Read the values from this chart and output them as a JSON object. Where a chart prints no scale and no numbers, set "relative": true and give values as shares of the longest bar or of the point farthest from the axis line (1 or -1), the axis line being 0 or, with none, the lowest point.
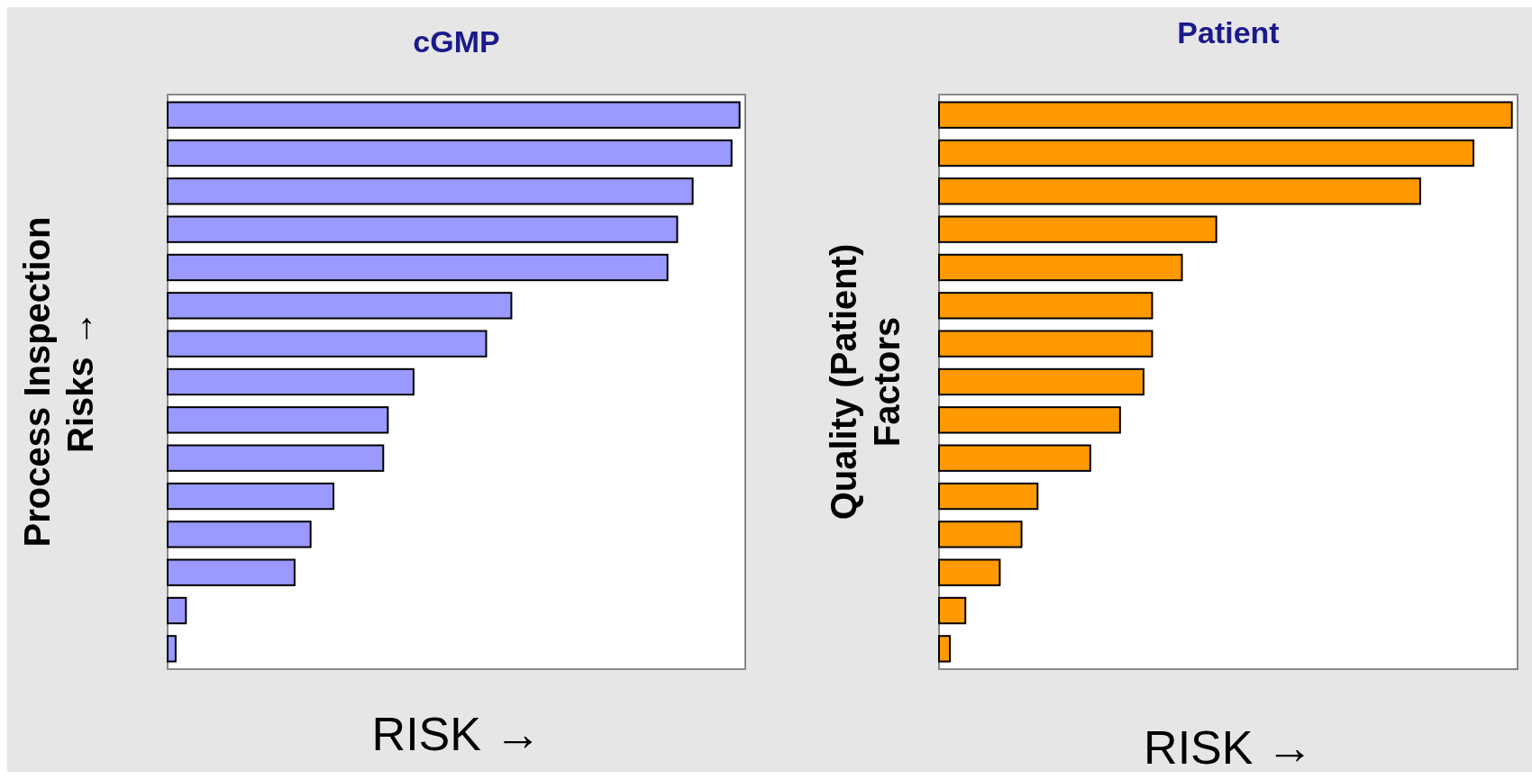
{
  "chart_data": [
    {
      "type": "bar",
      "orientation": "horizontal",
      "relative": true,
      "title": "cGMP",
      "xlabel": "RISK →",
      "ylabel": "Process Inspection\nRisks →",
      "categories": [
        null,
        null,
        null,
        null,
        null,
        null,
        null,
        null,
        null,
        null,
        null,
        null,
        null,
        null,
        null
      ],
      "values": [
        1,
        0.986,
        0.918,
        0.891,
        0.874,
        0.601,
        0.557,
        0.43,
        0.385,
        0.377,
        0.29,
        0.25,
        0.222,
        0.032,
        0.014
      ],
      "color": "#9999ff"
    },
    {
      "type": "bar",
      "orientation": "horizontal",
      "relative": true,
      "title": "Patient",
      "xlabel": "RISK →",
      "ylabel": "Quality (Patient)\nFactors",
      "categories": [
        null,
        null,
        null,
        null,
        null,
        null,
        null,
        null,
        null,
        null,
        null,
        null,
        null,
        null,
        null
      ],
      "values": [
        1,
        0.933,
        0.84,
        0.484,
        0.424,
        0.372,
        0.372,
        0.357,
        0.316,
        0.264,
        0.172,
        0.144,
        0.106,
        0.046,
        0.019
      ],
      "color": "#ff9900"
    }
  ]
}
